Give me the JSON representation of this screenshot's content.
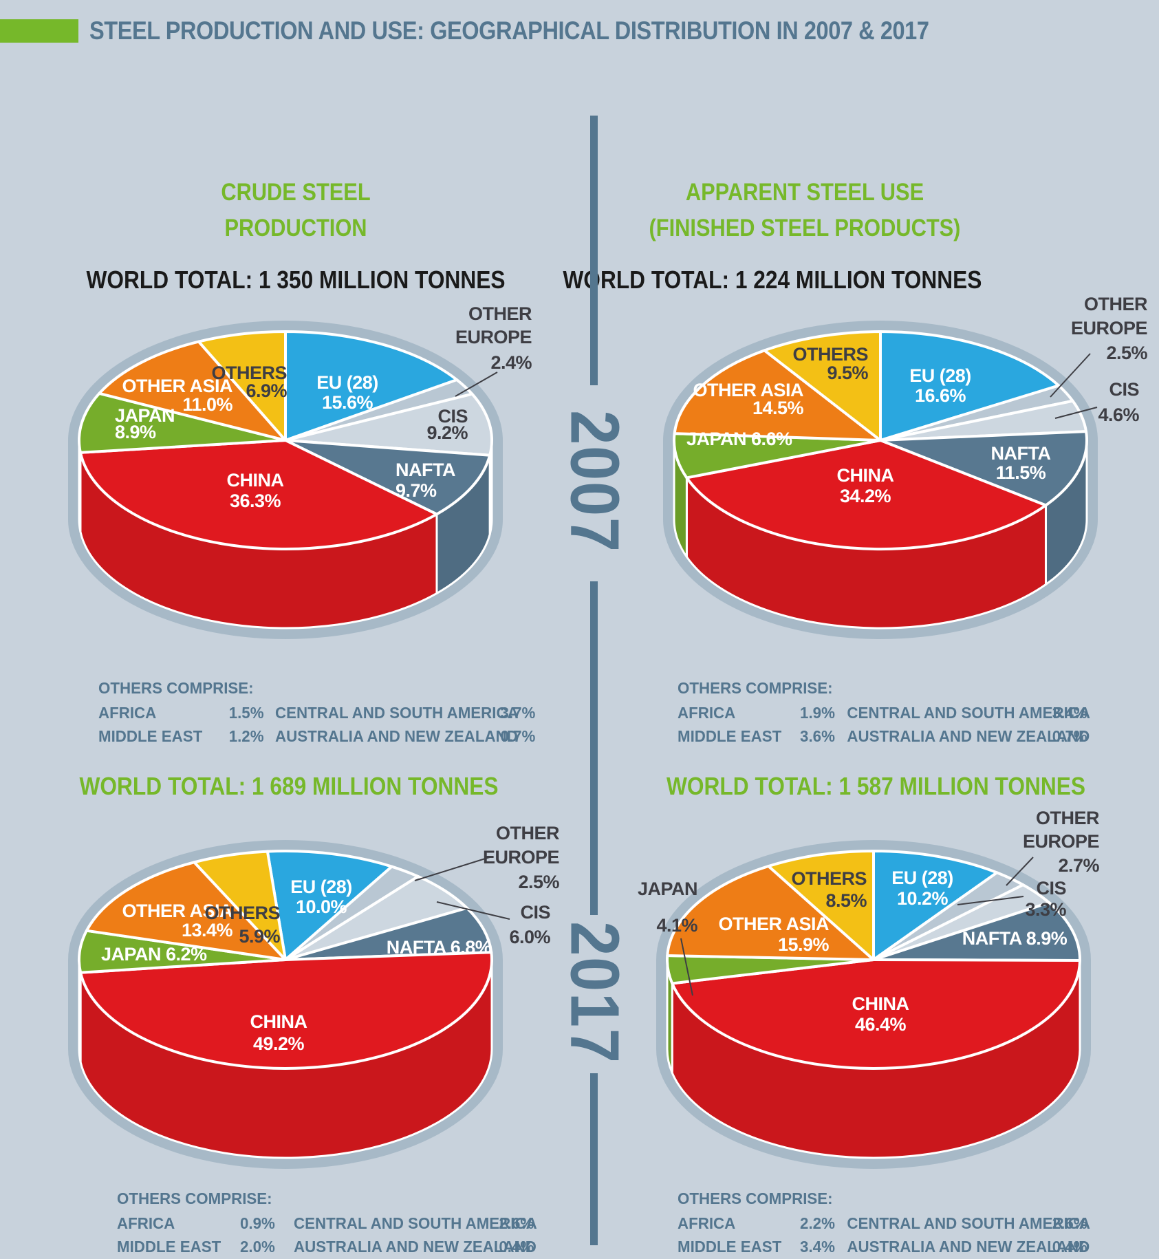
{
  "title": "STEEL PRODUCTION AND USE: GEOGRAPHICAL DISTRIBUTION IN 2007 & 2017",
  "years": [
    "2007",
    "2017"
  ],
  "columns": [
    {
      "heading_lines": [
        "CRUDE STEEL",
        "PRODUCTION"
      ]
    },
    {
      "heading_lines": [
        "APPARENT STEEL USE",
        "(FINISHED STEEL PRODUCTS)"
      ]
    }
  ],
  "colors": {
    "background": "#c8d2dc",
    "accent_green": "#76b82a",
    "slate": "#54768f",
    "black": "#1a1a1a",
    "dark_label": "#3e3e44",
    "ring": "#a7b9c7",
    "eu": "#2aa7df",
    "other_europe": "#b9c7d3",
    "cis": "#cdd7e0",
    "nafta": "#587890",
    "china": "#e0191f",
    "japan": "#76ad2b",
    "other_asia": "#ee7d16",
    "others": "#f3c015"
  },
  "chart_data": [
    {
      "id": "crude-steel-production-2007",
      "type": "pie",
      "year": "2007",
      "measure": "CRUDE STEEL PRODUCTION",
      "world_total": "WORLD TOTAL: 1 350 MILLION TONNES",
      "segments": [
        {
          "key": "eu",
          "label": "EU (28)",
          "value": 15.6
        },
        {
          "key": "other_europe",
          "label": "OTHER EUROPE",
          "value": 2.4
        },
        {
          "key": "cis",
          "label": "CIS",
          "value": 9.2
        },
        {
          "key": "nafta",
          "label": "NAFTA",
          "value": 9.7
        },
        {
          "key": "china",
          "label": "CHINA",
          "value": 36.3
        },
        {
          "key": "japan",
          "label": "JAPAN",
          "value": 8.9
        },
        {
          "key": "other_asia",
          "label": "OTHER ASIA",
          "value": 11.0
        },
        {
          "key": "others",
          "label": "OTHERS",
          "value": 6.9
        }
      ],
      "others_comprise": {
        "heading": "OTHERS COMPRISE:",
        "items": [
          {
            "label": "AFRICA",
            "value": 1.5
          },
          {
            "label": "MIDDLE EAST",
            "value": 1.2
          },
          {
            "label": "CENTRAL AND SOUTH AMERICA",
            "value": 3.7
          },
          {
            "label": "AUSTRALIA AND NEW ZEALAND",
            "value": 0.7
          }
        ]
      }
    },
    {
      "id": "apparent-steel-use-2007",
      "type": "pie",
      "year": "2007",
      "measure": "APPARENT STEEL USE (FINISHED STEEL PRODUCTS)",
      "world_total": "WORLD TOTAL: 1 224 MILLION TONNES",
      "segments": [
        {
          "key": "eu",
          "label": "EU (28)",
          "value": 16.6
        },
        {
          "key": "other_europe",
          "label": "OTHER EUROPE",
          "value": 2.5
        },
        {
          "key": "cis",
          "label": "CIS",
          "value": 4.6
        },
        {
          "key": "nafta",
          "label": "NAFTA",
          "value": 11.5
        },
        {
          "key": "china",
          "label": "CHINA",
          "value": 34.2
        },
        {
          "key": "japan",
          "label": "JAPAN",
          "value": 6.6
        },
        {
          "key": "other_asia",
          "label": "OTHER ASIA",
          "value": 14.5
        },
        {
          "key": "others",
          "label": "OTHERS",
          "value": 9.5
        }
      ],
      "others_comprise": {
        "heading": "OTHERS COMPRISE:",
        "items": [
          {
            "label": "AFRICA",
            "value": 1.9
          },
          {
            "label": "MIDDLE EAST",
            "value": 3.6
          },
          {
            "label": "CENTRAL AND SOUTH AMERICA",
            "value": 3.4
          },
          {
            "label": "AUSTRALIA AND NEW ZEALAND",
            "value": 0.7
          }
        ]
      }
    },
    {
      "id": "crude-steel-production-2017",
      "type": "pie",
      "year": "2017",
      "measure": "CRUDE STEEL PRODUCTION",
      "world_total": "WORLD TOTAL: 1 689 MILLION TONNES",
      "segments": [
        {
          "key": "eu",
          "label": "EU (28)",
          "value": 10.0
        },
        {
          "key": "other_europe",
          "label": "OTHER EUROPE",
          "value": 2.5
        },
        {
          "key": "cis",
          "label": "CIS",
          "value": 6.0
        },
        {
          "key": "nafta",
          "label": "NAFTA",
          "value": 6.8
        },
        {
          "key": "china",
          "label": "CHINA",
          "value": 49.2
        },
        {
          "key": "japan",
          "label": "JAPAN",
          "value": 6.2
        },
        {
          "key": "other_asia",
          "label": "OTHER ASIA",
          "value": 13.4
        },
        {
          "key": "others",
          "label": "OTHERS",
          "value": 5.9
        }
      ],
      "others_comprise": {
        "heading": "OTHERS COMPRISE:",
        "items": [
          {
            "label": "AFRICA",
            "value": 0.9
          },
          {
            "label": "MIDDLE EAST",
            "value": 2.0
          },
          {
            "label": "CENTRAL AND SOUTH AMERICA",
            "value": 2.6
          },
          {
            "label": "AUSTRALIA AND NEW ZEALAND",
            "value": 0.4
          }
        ]
      }
    },
    {
      "id": "apparent-steel-use-2017",
      "type": "pie",
      "year": "2017",
      "measure": "APPARENT STEEL USE (FINISHED STEEL PRODUCTS)",
      "world_total": "WORLD TOTAL: 1 587 MILLION TONNES",
      "segments": [
        {
          "key": "eu",
          "label": "EU (28)",
          "value": 10.2
        },
        {
          "key": "other_europe",
          "label": "OTHER EUROPE",
          "value": 2.7
        },
        {
          "key": "cis",
          "label": "CIS",
          "value": 3.3
        },
        {
          "key": "nafta",
          "label": "NAFTA",
          "value": 8.9
        },
        {
          "key": "china",
          "label": "CHINA",
          "value": 46.4
        },
        {
          "key": "japan",
          "label": "JAPAN",
          "value": 4.1
        },
        {
          "key": "other_asia",
          "label": "OTHER ASIA",
          "value": 15.9
        },
        {
          "key": "others",
          "label": "OTHERS",
          "value": 8.5
        }
      ],
      "others_comprise": {
        "heading": "OTHERS COMPRISE:",
        "items": [
          {
            "label": "AFRICA",
            "value": 2.2
          },
          {
            "label": "MIDDLE EAST",
            "value": 3.4
          },
          {
            "label": "CENTRAL AND SOUTH AMERICA",
            "value": 2.6
          },
          {
            "label": "AUSTRALIA AND NEW ZEALAND",
            "value": 0.4
          }
        ]
      }
    }
  ]
}
